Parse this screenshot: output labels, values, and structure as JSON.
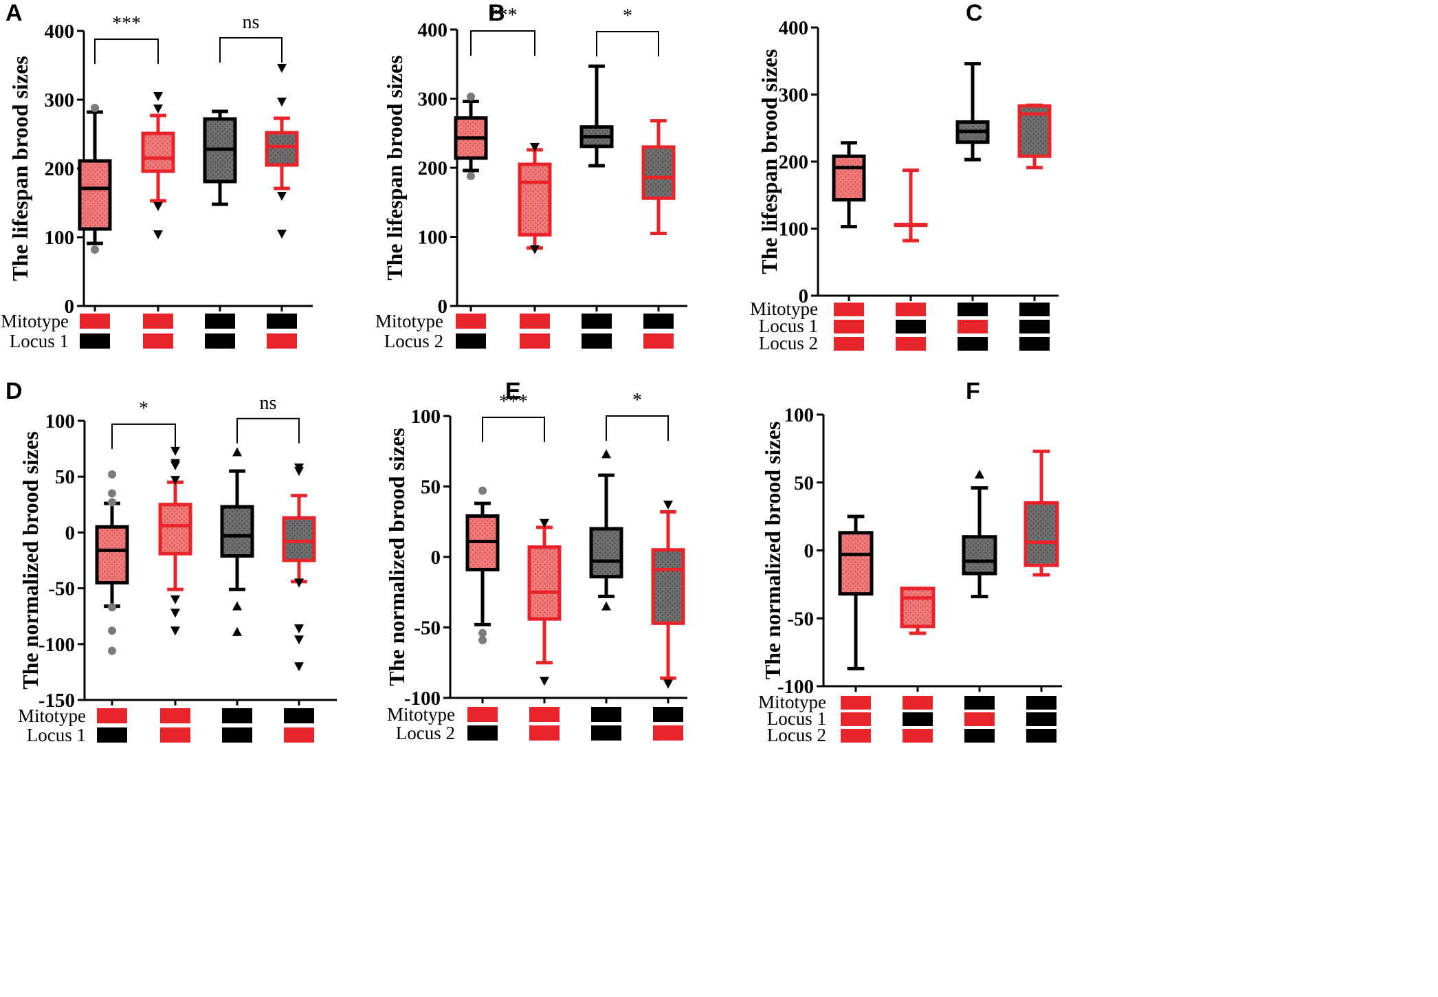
{
  "colors": {
    "red": "#e8242a",
    "black": "#000000",
    "red_fill": "#f07878",
    "gray_fill": "#6e6e6e",
    "outlier_gray": "#7a7a7a"
  },
  "chart_data": [
    {
      "panel": "A",
      "type": "boxplot",
      "ylabel": "The lifespan brood sizes",
      "ylim": [
        0,
        400
      ],
      "yticks": [
        0,
        100,
        200,
        300,
        400
      ],
      "yticklabels": [
        "0",
        "100",
        "200",
        "300",
        "400"
      ],
      "row_labels": [
        "Mitotype",
        "Locus 1"
      ],
      "groups": [
        {
          "style": "black-red",
          "min": 91,
          "q1": 112,
          "median": 171,
          "q3": 211,
          "max": 282,
          "outliers": [
            {
              "v": 288,
              "m": "circle"
            },
            {
              "v": 82,
              "m": "circle"
            }
          ],
          "genotype": [
            "red",
            "black"
          ]
        },
        {
          "style": "red-red",
          "min": 153,
          "q1": 196,
          "median": 215,
          "q3": 251,
          "max": 277,
          "outliers": [
            {
              "v": 305,
              "m": "tri-down"
            },
            {
              "v": 287,
              "m": "tri-down"
            },
            {
              "v": 145,
              "m": "tri-down"
            },
            {
              "v": 104,
              "m": "tri-down"
            }
          ],
          "genotype": [
            "red",
            "red"
          ]
        },
        {
          "style": "black-gray",
          "min": 148,
          "q1": 181,
          "median": 228,
          "q3": 272,
          "max": 283,
          "outliers": [],
          "genotype": [
            "black",
            "black"
          ]
        },
        {
          "style": "red-gray",
          "min": 171,
          "q1": 205,
          "median": 232,
          "q3": 252,
          "max": 273,
          "outliers": [
            {
              "v": 346,
              "m": "tri-down"
            },
            {
              "v": 297,
              "m": "tri-down"
            },
            {
              "v": 160,
              "m": "tri-down"
            },
            {
              "v": 105,
              "m": "tri-down"
            }
          ],
          "genotype": [
            "black",
            "red"
          ]
        }
      ],
      "brackets": [
        {
          "from": 0,
          "to": 1,
          "label": "***",
          "y": 388
        },
        {
          "from": 2,
          "to": 3,
          "label": "ns",
          "y": 390
        }
      ]
    },
    {
      "panel": "B",
      "type": "boxplot",
      "ylabel": "The lifespan brood sizes",
      "ylim": [
        0,
        400
      ],
      "yticks": [
        0,
        100,
        200,
        300,
        400
      ],
      "yticklabels": [
        "0",
        "100",
        "200",
        "300",
        "400"
      ],
      "row_labels": [
        "Mitotype",
        "Locus 2"
      ],
      "groups": [
        {
          "style": "black-red",
          "min": 196,
          "q1": 214,
          "median": 243,
          "q3": 272,
          "max": 296,
          "outliers": [
            {
              "v": 303,
              "m": "circle"
            },
            {
              "v": 188,
              "m": "circle"
            }
          ],
          "genotype": [
            "red",
            "black"
          ]
        },
        {
          "style": "red-red",
          "min": 84,
          "q1": 103,
          "median": 179,
          "q3": 205,
          "max": 226,
          "outliers": [
            {
              "v": 230,
              "m": "tri-down"
            },
            {
              "v": 82,
              "m": "tri-down"
            }
          ],
          "genotype": [
            "red",
            "red"
          ]
        },
        {
          "style": "black-gray",
          "min": 203,
          "q1": 231,
          "median": 245,
          "q3": 259,
          "max": 347,
          "outliers": [],
          "genotype": [
            "black",
            "black"
          ]
        },
        {
          "style": "red-gray",
          "min": 105,
          "q1": 156,
          "median": 186,
          "q3": 230,
          "max": 268,
          "outliers": [],
          "genotype": [
            "black",
            "red"
          ]
        }
      ],
      "brackets": [
        {
          "from": 0,
          "to": 1,
          "label": "***",
          "y": 398
        },
        {
          "from": 2,
          "to": 3,
          "label": "*",
          "y": 397
        }
      ]
    },
    {
      "panel": "C",
      "type": "boxplot",
      "ylabel": "The lifespan brood sizes",
      "ylim": [
        0,
        400
      ],
      "yticks": [
        0,
        100,
        200,
        300,
        400
      ],
      "yticklabels": [
        "0",
        "100",
        "200",
        "300",
        "400"
      ],
      "row_labels": [
        "Mitotype",
        "Locus 1",
        "Locus 2"
      ],
      "groups": [
        {
          "style": "black-red",
          "min": 103,
          "q1": 143,
          "median": 191,
          "q3": 208,
          "max": 228,
          "outliers": [],
          "genotype": [
            "red",
            "red",
            "red"
          ]
        },
        {
          "style": "red-red",
          "min": 82,
          "q1": 106,
          "median": 106,
          "q3": 106,
          "max": 187,
          "outliers": [],
          "genotype": [
            "red",
            "black",
            "red"
          ]
        },
        {
          "style": "black-gray",
          "min": 203,
          "q1": 229,
          "median": 245,
          "q3": 259,
          "max": 346,
          "outliers": [],
          "genotype": [
            "black",
            "red",
            "black"
          ]
        },
        {
          "style": "red-gray",
          "min": 191,
          "q1": 208,
          "median": 271,
          "q3": 283,
          "max": 284,
          "outliers": [],
          "genotype": [
            "black",
            "black",
            "black"
          ]
        }
      ],
      "brackets": []
    },
    {
      "panel": "D",
      "type": "boxplot",
      "ylabel": "The normalized brood sizes",
      "ylim": [
        -150,
        100
      ],
      "yticks": [
        -150,
        -100,
        -50,
        0,
        50,
        100
      ],
      "yticklabels": [
        "-150",
        "-100",
        "-50",
        "0",
        "50",
        "100"
      ],
      "row_labels": [
        "Mitotype",
        "Locus 1"
      ],
      "groups": [
        {
          "style": "black-red",
          "min": -66,
          "q1": -45,
          "median": -16,
          "q3": 5,
          "max": 26,
          "outliers": [
            {
              "v": 52,
              "m": "circle"
            },
            {
              "v": 35,
              "m": "circle"
            },
            {
              "v": 27,
              "m": "circle"
            },
            {
              "v": -67,
              "m": "circle"
            },
            {
              "v": -88,
              "m": "circle"
            },
            {
              "v": -106,
              "m": "circle"
            }
          ],
          "genotype": [
            "red",
            "black"
          ]
        },
        {
          "style": "red-red",
          "min": -51,
          "q1": -19,
          "median": 6,
          "q3": 25,
          "max": 45,
          "outliers": [
            {
              "v": 73,
              "m": "tri-down"
            },
            {
              "v": 62,
              "m": "tri-down"
            },
            {
              "v": 60,
              "m": "tri-down"
            },
            {
              "v": 47,
              "m": "tri-down"
            },
            {
              "v": -60,
              "m": "tri-down"
            },
            {
              "v": -72,
              "m": "tri-down"
            },
            {
              "v": -88,
              "m": "tri-down"
            }
          ],
          "genotype": [
            "red",
            "red"
          ]
        },
        {
          "style": "black-gray",
          "min": -51,
          "q1": -21,
          "median": -3,
          "q3": 23,
          "max": 55,
          "outliers": [
            {
              "v": 72,
              "m": "tri-up"
            },
            {
              "v": -66,
              "m": "tri-up"
            },
            {
              "v": -89,
              "m": "tri-up"
            }
          ],
          "genotype": [
            "black",
            "black"
          ]
        },
        {
          "style": "red-gray",
          "min": -44,
          "q1": -25,
          "median": -8,
          "q3": 13,
          "max": 33,
          "outliers": [
            {
              "v": 58,
              "m": "tri-down"
            },
            {
              "v": 55,
              "m": "tri-down"
            },
            {
              "v": -45,
              "m": "tri-down"
            },
            {
              "v": -86,
              "m": "tri-down"
            },
            {
              "v": -96,
              "m": "tri-down"
            },
            {
              "v": -120,
              "m": "tri-down"
            }
          ],
          "genotype": [
            "black",
            "red"
          ]
        }
      ],
      "brackets": [
        {
          "from": 0,
          "to": 1,
          "label": "*",
          "y": 97
        },
        {
          "from": 2,
          "to": 3,
          "label": "ns",
          "y": 102
        }
      ]
    },
    {
      "panel": "E",
      "type": "boxplot",
      "ylabel": "The normalized brood sizes",
      "ylim": [
        -100,
        100
      ],
      "yticks": [
        -100,
        -50,
        0,
        50,
        100
      ],
      "yticklabels": [
        "-100",
        "-50",
        "0",
        "50",
        "100"
      ],
      "row_labels": [
        "Mitotype",
        "Locus 2"
      ],
      "groups": [
        {
          "style": "black-red",
          "min": -48,
          "q1": -9,
          "median": 11,
          "q3": 29,
          "max": 38,
          "outliers": [
            {
              "v": 47,
              "m": "circle"
            },
            {
              "v": -54,
              "m": "circle"
            },
            {
              "v": -59,
              "m": "circle"
            }
          ],
          "genotype": [
            "red",
            "black"
          ]
        },
        {
          "style": "red-red",
          "min": -75,
          "q1": -44,
          "median": -25,
          "q3": 7,
          "max": 21,
          "outliers": [
            {
              "v": 24,
              "m": "tri-down"
            },
            {
              "v": -88,
              "m": "tri-down"
            }
          ],
          "genotype": [
            "red",
            "red"
          ]
        },
        {
          "style": "black-gray",
          "min": -28,
          "q1": -14,
          "median": -3,
          "q3": 20,
          "max": 58,
          "outliers": [
            {
              "v": 73,
              "m": "tri-up"
            },
            {
              "v": -35,
              "m": "tri-up"
            }
          ],
          "genotype": [
            "black",
            "black"
          ]
        },
        {
          "style": "red-gray",
          "min": -86,
          "q1": -47,
          "median": -9,
          "q3": 5,
          "max": 32,
          "outliers": [
            {
              "v": 37,
              "m": "tri-down"
            },
            {
              "v": -90,
              "m": "tri-down"
            }
          ],
          "genotype": [
            "black",
            "red"
          ]
        }
      ],
      "brackets": [
        {
          "from": 0,
          "to": 1,
          "label": "***",
          "y": 99
        },
        {
          "from": 2,
          "to": 3,
          "label": "*",
          "y": 100
        }
      ]
    },
    {
      "panel": "F",
      "type": "boxplot",
      "ylabel": "The normalized brood sizes",
      "ylim": [
        -100,
        100
      ],
      "yticks": [
        -100,
        -50,
        0,
        50,
        100
      ],
      "yticklabels": [
        "-100",
        "-50",
        "0",
        "50",
        "100"
      ],
      "row_labels": [
        "Mitotype",
        "Locus 1",
        "Locus 2"
      ],
      "groups": [
        {
          "style": "black-red",
          "min": -87,
          "q1": -32,
          "median": -3,
          "q3": 13,
          "max": 25,
          "outliers": [],
          "genotype": [
            "red",
            "red",
            "red"
          ]
        },
        {
          "style": "red-red",
          "min": -61,
          "q1": -56,
          "median": -35,
          "q3": -28,
          "max": -28,
          "outliers": [],
          "genotype": [
            "red",
            "black",
            "red"
          ]
        },
        {
          "style": "black-gray",
          "min": -34,
          "q1": -17,
          "median": -8,
          "q3": 10,
          "max": 46,
          "outliers": [
            {
              "v": 56,
              "m": "tri-up"
            }
          ],
          "genotype": [
            "black",
            "red",
            "black"
          ]
        },
        {
          "style": "red-gray",
          "min": -18,
          "q1": -11,
          "median": 6,
          "q3": 35,
          "max": 73,
          "outliers": [],
          "genotype": [
            "black",
            "black",
            "black"
          ]
        }
      ],
      "brackets": []
    }
  ]
}
